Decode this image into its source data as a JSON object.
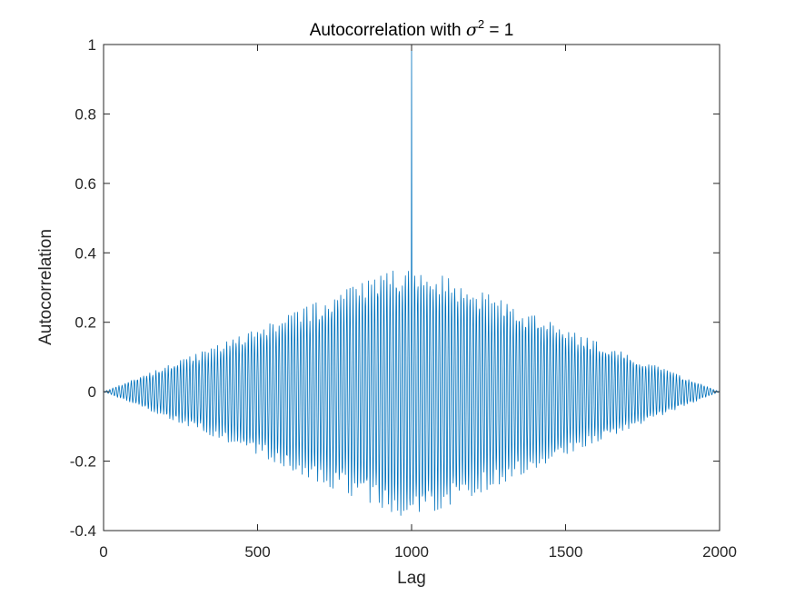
{
  "chart_data": {
    "type": "line",
    "title": {
      "prefix": "Autocorrelation with ",
      "symbol": "σ",
      "superscript": "2",
      "suffix": " = 1"
    },
    "xlabel": "Lag",
    "ylabel": "Autocorrelation",
    "xlim": [
      0,
      2000
    ],
    "ylim": [
      -0.4,
      1
    ],
    "xticks": [
      0,
      500,
      1000,
      1500,
      2000
    ],
    "xtick_labels": [
      "0",
      "500",
      "1000",
      "1500",
      "2000"
    ],
    "yticks": [
      -0.4,
      -0.2,
      0,
      0.2,
      0.4,
      0.6,
      0.8,
      1
    ],
    "ytick_labels": [
      "-0.4",
      "-0.2",
      "0",
      "0.2",
      "0.4",
      "0.6",
      "0.8",
      "1"
    ],
    "grid": false,
    "legend": "none",
    "line_color": "#0072BD",
    "series": [
      {
        "peak": {
          "x": 1000,
          "y": 1
        },
        "envelope": [
          {
            "x": 0,
            "y": 0
          },
          {
            "x": 250,
            "y": 0.09
          },
          {
            "x": 500,
            "y": 0.18
          },
          {
            "x": 750,
            "y": 0.28
          },
          {
            "x": 975,
            "y": 0.36
          },
          {
            "x": 1000,
            "y": 0.37
          },
          {
            "x": 1025,
            "y": 0.36
          },
          {
            "x": 1250,
            "y": 0.28
          },
          {
            "x": 1500,
            "y": 0.18
          },
          {
            "x": 1750,
            "y": 0.09
          },
          {
            "x": 2000,
            "y": 0
          }
        ],
        "oscillation_period": 10
      }
    ]
  }
}
